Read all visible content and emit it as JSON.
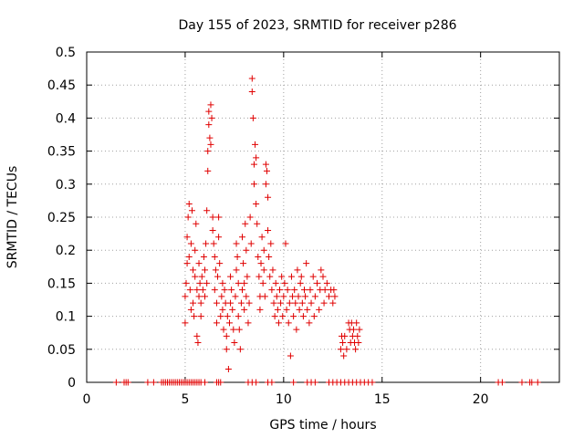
{
  "chart_data": {
    "type": "scatter",
    "title": "Day 155 of 2023, SRMTID for receiver p286",
    "xlabel": "GPS time / hours",
    "ylabel": "SRMTID / TECUs",
    "xlim": [
      0,
      24
    ],
    "ylim": [
      0,
      0.5
    ],
    "grid": true,
    "marker": "+",
    "marker_color": "#e00000",
    "xticks": [
      {
        "value": 0,
        "label": "0"
      },
      {
        "value": 5,
        "label": "5"
      },
      {
        "value": 10,
        "label": "10"
      },
      {
        "value": 15,
        "label": "15"
      },
      {
        "value": 20,
        "label": "20"
      }
    ],
    "yticks": [
      {
        "value": 0,
        "label": "0"
      },
      {
        "value": 0.05,
        "label": "0.05"
      },
      {
        "value": 0.1,
        "label": "0.1"
      },
      {
        "value": 0.15,
        "label": "0.15"
      },
      {
        "value": 0.2,
        "label": "0.2"
      },
      {
        "value": 0.25,
        "label": "0.25"
      },
      {
        "value": 0.3,
        "label": "0.3"
      },
      {
        "value": 0.35,
        "label": "0.35"
      },
      {
        "value": 0.4,
        "label": "0.4"
      },
      {
        "value": 0.45,
        "label": "0.45"
      },
      {
        "value": 0.5,
        "label": "0.5"
      }
    ],
    "series": [
      {
        "name": "SRMTID",
        "points": [
          [
            1.5,
            0
          ],
          [
            1.9,
            0
          ],
          [
            2.0,
            0
          ],
          [
            2.1,
            0
          ],
          [
            3.1,
            0
          ],
          [
            3.4,
            0
          ],
          [
            3.8,
            0
          ],
          [
            3.9,
            0
          ],
          [
            4.0,
            0
          ],
          [
            4.1,
            0
          ],
          [
            4.2,
            0
          ],
          [
            4.3,
            0
          ],
          [
            4.4,
            0
          ],
          [
            4.5,
            0
          ],
          [
            4.6,
            0
          ],
          [
            4.7,
            0
          ],
          [
            4.8,
            0
          ],
          [
            4.9,
            0
          ],
          [
            5.0,
            0
          ],
          [
            5.1,
            0
          ],
          [
            5.2,
            0
          ],
          [
            5.3,
            0
          ],
          [
            5.4,
            0
          ],
          [
            5.5,
            0
          ],
          [
            5.6,
            0
          ],
          [
            5.7,
            0
          ],
          [
            5.8,
            0
          ],
          [
            6.0,
            0
          ],
          [
            6.6,
            0
          ],
          [
            6.7,
            0
          ],
          [
            6.8,
            0
          ],
          [
            8.2,
            0
          ],
          [
            8.4,
            0
          ],
          [
            8.6,
            0
          ],
          [
            9.2,
            0
          ],
          [
            9.4,
            0
          ],
          [
            10.5,
            0
          ],
          [
            11.2,
            0
          ],
          [
            11.4,
            0
          ],
          [
            11.6,
            0
          ],
          [
            12.3,
            0
          ],
          [
            12.5,
            0
          ],
          [
            12.7,
            0
          ],
          [
            12.9,
            0
          ],
          [
            13.1,
            0
          ],
          [
            13.3,
            0
          ],
          [
            13.5,
            0
          ],
          [
            13.7,
            0
          ],
          [
            13.9,
            0
          ],
          [
            14.1,
            0
          ],
          [
            14.3,
            0
          ],
          [
            14.5,
            0
          ],
          [
            20.9,
            0
          ],
          [
            21.1,
            0
          ],
          [
            22.1,
            0
          ],
          [
            22.5,
            0
          ],
          [
            22.6,
            0
          ],
          [
            22.9,
            0
          ],
          [
            5.0,
            0.09
          ],
          [
            5.0,
            0.13
          ],
          [
            5.05,
            0.15
          ],
          [
            5.1,
            0.18
          ],
          [
            5.1,
            0.22
          ],
          [
            5.15,
            0.25
          ],
          [
            5.2,
            0.27
          ],
          [
            5.2,
            0.19
          ],
          [
            5.25,
            0.14
          ],
          [
            5.3,
            0.11
          ],
          [
            5.3,
            0.21
          ],
          [
            5.35,
            0.26
          ],
          [
            5.4,
            0.17
          ],
          [
            5.4,
            0.12
          ],
          [
            5.45,
            0.1
          ],
          [
            5.5,
            0.16
          ],
          [
            5.5,
            0.2
          ],
          [
            5.55,
            0.24
          ],
          [
            5.6,
            0.14
          ],
          [
            5.6,
            0.07
          ],
          [
            5.65,
            0.06
          ],
          [
            5.7,
            0.13
          ],
          [
            5.7,
            0.18
          ],
          [
            5.75,
            0.15
          ],
          [
            5.8,
            0.12
          ],
          [
            5.8,
            0.1
          ],
          [
            5.85,
            0.16
          ],
          [
            5.9,
            0.14
          ],
          [
            5.95,
            0.19
          ],
          [
            6.0,
            0.13
          ],
          [
            6.0,
            0.17
          ],
          [
            6.05,
            0.21
          ],
          [
            6.1,
            0.15
          ],
          [
            6.1,
            0.26
          ],
          [
            6.15,
            0.35
          ],
          [
            6.15,
            0.32
          ],
          [
            6.2,
            0.41
          ],
          [
            6.2,
            0.39
          ],
          [
            6.25,
            0.37
          ],
          [
            6.3,
            0.42
          ],
          [
            6.3,
            0.36
          ],
          [
            6.35,
            0.4
          ],
          [
            6.4,
            0.23
          ],
          [
            6.4,
            0.25
          ],
          [
            6.45,
            0.21
          ],
          [
            6.5,
            0.19
          ],
          [
            6.5,
            0.14
          ],
          [
            6.55,
            0.17
          ],
          [
            6.6,
            0.12
          ],
          [
            6.6,
            0.09
          ],
          [
            6.65,
            0.16
          ],
          [
            6.7,
            0.22
          ],
          [
            6.7,
            0.25
          ],
          [
            6.75,
            0.18
          ],
          [
            6.8,
            0.1
          ],
          [
            6.85,
            0.13
          ],
          [
            6.9,
            0.15
          ],
          [
            6.9,
            0.11
          ],
          [
            6.95,
            0.08
          ],
          [
            7.0,
            0.14
          ],
          [
            7.05,
            0.12
          ],
          [
            7.1,
            0.07
          ],
          [
            7.1,
            0.05
          ],
          [
            7.15,
            0.1
          ],
          [
            7.2,
            0.02
          ],
          [
            7.25,
            0.09
          ],
          [
            7.3,
            0.12
          ],
          [
            7.3,
            0.16
          ],
          [
            7.35,
            0.14
          ],
          [
            7.4,
            0.11
          ],
          [
            7.45,
            0.08
          ],
          [
            7.5,
            0.06
          ],
          [
            7.55,
            0.13
          ],
          [
            7.6,
            0.17
          ],
          [
            7.6,
            0.21
          ],
          [
            7.65,
            0.19
          ],
          [
            7.7,
            0.15
          ],
          [
            7.7,
            0.1
          ],
          [
            7.75,
            0.08
          ],
          [
            7.8,
            0.05
          ],
          [
            7.85,
            0.12
          ],
          [
            7.9,
            0.14
          ],
          [
            7.9,
            0.22
          ],
          [
            7.95,
            0.18
          ],
          [
            8.0,
            0.15
          ],
          [
            8.0,
            0.11
          ],
          [
            8.05,
            0.24
          ],
          [
            8.1,
            0.2
          ],
          [
            8.1,
            0.13
          ],
          [
            8.15,
            0.16
          ],
          [
            8.2,
            0.09
          ],
          [
            8.25,
            0.12
          ],
          [
            8.3,
            0.25
          ],
          [
            8.35,
            0.21
          ],
          [
            8.4,
            0.46
          ],
          [
            8.4,
            0.44
          ],
          [
            8.45,
            0.4
          ],
          [
            8.5,
            0.3
          ],
          [
            8.5,
            0.33
          ],
          [
            8.55,
            0.36
          ],
          [
            8.6,
            0.34
          ],
          [
            8.6,
            0.27
          ],
          [
            8.65,
            0.24
          ],
          [
            8.7,
            0.19
          ],
          [
            8.75,
            0.16
          ],
          [
            8.8,
            0.13
          ],
          [
            8.8,
            0.11
          ],
          [
            8.85,
            0.18
          ],
          [
            8.9,
            0.22
          ],
          [
            8.95,
            0.15
          ],
          [
            9.0,
            0.17
          ],
          [
            9.0,
            0.2
          ],
          [
            9.05,
            0.13
          ],
          [
            9.1,
            0.33
          ],
          [
            9.1,
            0.3
          ],
          [
            9.15,
            0.32
          ],
          [
            9.2,
            0.28
          ],
          [
            9.2,
            0.23
          ],
          [
            9.25,
            0.19
          ],
          [
            9.3,
            0.16
          ],
          [
            9.35,
            0.21
          ],
          [
            9.4,
            0.14
          ],
          [
            9.45,
            0.17
          ],
          [
            9.5,
            0.12
          ],
          [
            9.55,
            0.1
          ],
          [
            9.6,
            0.15
          ],
          [
            9.65,
            0.13
          ],
          [
            9.7,
            0.11
          ],
          [
            9.75,
            0.09
          ],
          [
            9.8,
            0.14
          ],
          [
            9.85,
            0.12
          ],
          [
            9.9,
            0.16
          ],
          [
            9.95,
            0.1
          ],
          [
            10.0,
            0.13
          ],
          [
            10.05,
            0.15
          ],
          [
            10.1,
            0.21
          ],
          [
            10.15,
            0.11
          ],
          [
            10.2,
            0.14
          ],
          [
            10.25,
            0.09
          ],
          [
            10.3,
            0.12
          ],
          [
            10.35,
            0.04
          ],
          [
            10.4,
            0.16
          ],
          [
            10.45,
            0.13
          ],
          [
            10.5,
            0.1
          ],
          [
            10.55,
            0.14
          ],
          [
            10.6,
            0.12
          ],
          [
            10.65,
            0.08
          ],
          [
            10.7,
            0.17
          ],
          [
            10.75,
            0.13
          ],
          [
            10.8,
            0.11
          ],
          [
            10.85,
            0.15
          ],
          [
            10.9,
            0.16
          ],
          [
            10.95,
            0.12
          ],
          [
            11.0,
            0.1
          ],
          [
            11.05,
            0.14
          ],
          [
            11.1,
            0.13
          ],
          [
            11.15,
            0.18
          ],
          [
            11.2,
            0.11
          ],
          [
            11.3,
            0.09
          ],
          [
            11.35,
            0.14
          ],
          [
            11.4,
            0.12
          ],
          [
            11.5,
            0.16
          ],
          [
            11.55,
            0.1
          ],
          [
            11.6,
            0.13
          ],
          [
            11.7,
            0.15
          ],
          [
            11.8,
            0.11
          ],
          [
            11.85,
            0.14
          ],
          [
            11.9,
            0.17
          ],
          [
            12.0,
            0.16
          ],
          [
            12.05,
            0.12
          ],
          [
            12.1,
            0.14
          ],
          [
            12.2,
            0.15
          ],
          [
            12.3,
            0.13
          ],
          [
            12.4,
            0.14
          ],
          [
            12.5,
            0.12
          ],
          [
            12.55,
            0.14
          ],
          [
            12.6,
            0.13
          ],
          [
            12.9,
            0.05
          ],
          [
            12.95,
            0.07
          ],
          [
            13.0,
            0.06
          ],
          [
            13.05,
            0.04
          ],
          [
            13.1,
            0.07
          ],
          [
            13.2,
            0.05
          ],
          [
            13.3,
            0.09
          ],
          [
            13.35,
            0.08
          ],
          [
            13.4,
            0.06
          ],
          [
            13.45,
            0.09
          ],
          [
            13.5,
            0.07
          ],
          [
            13.55,
            0.08
          ],
          [
            13.6,
            0.06
          ],
          [
            13.65,
            0.05
          ],
          [
            13.7,
            0.09
          ],
          [
            13.75,
            0.07
          ],
          [
            13.8,
            0.06
          ],
          [
            13.85,
            0.08
          ]
        ]
      }
    ]
  }
}
